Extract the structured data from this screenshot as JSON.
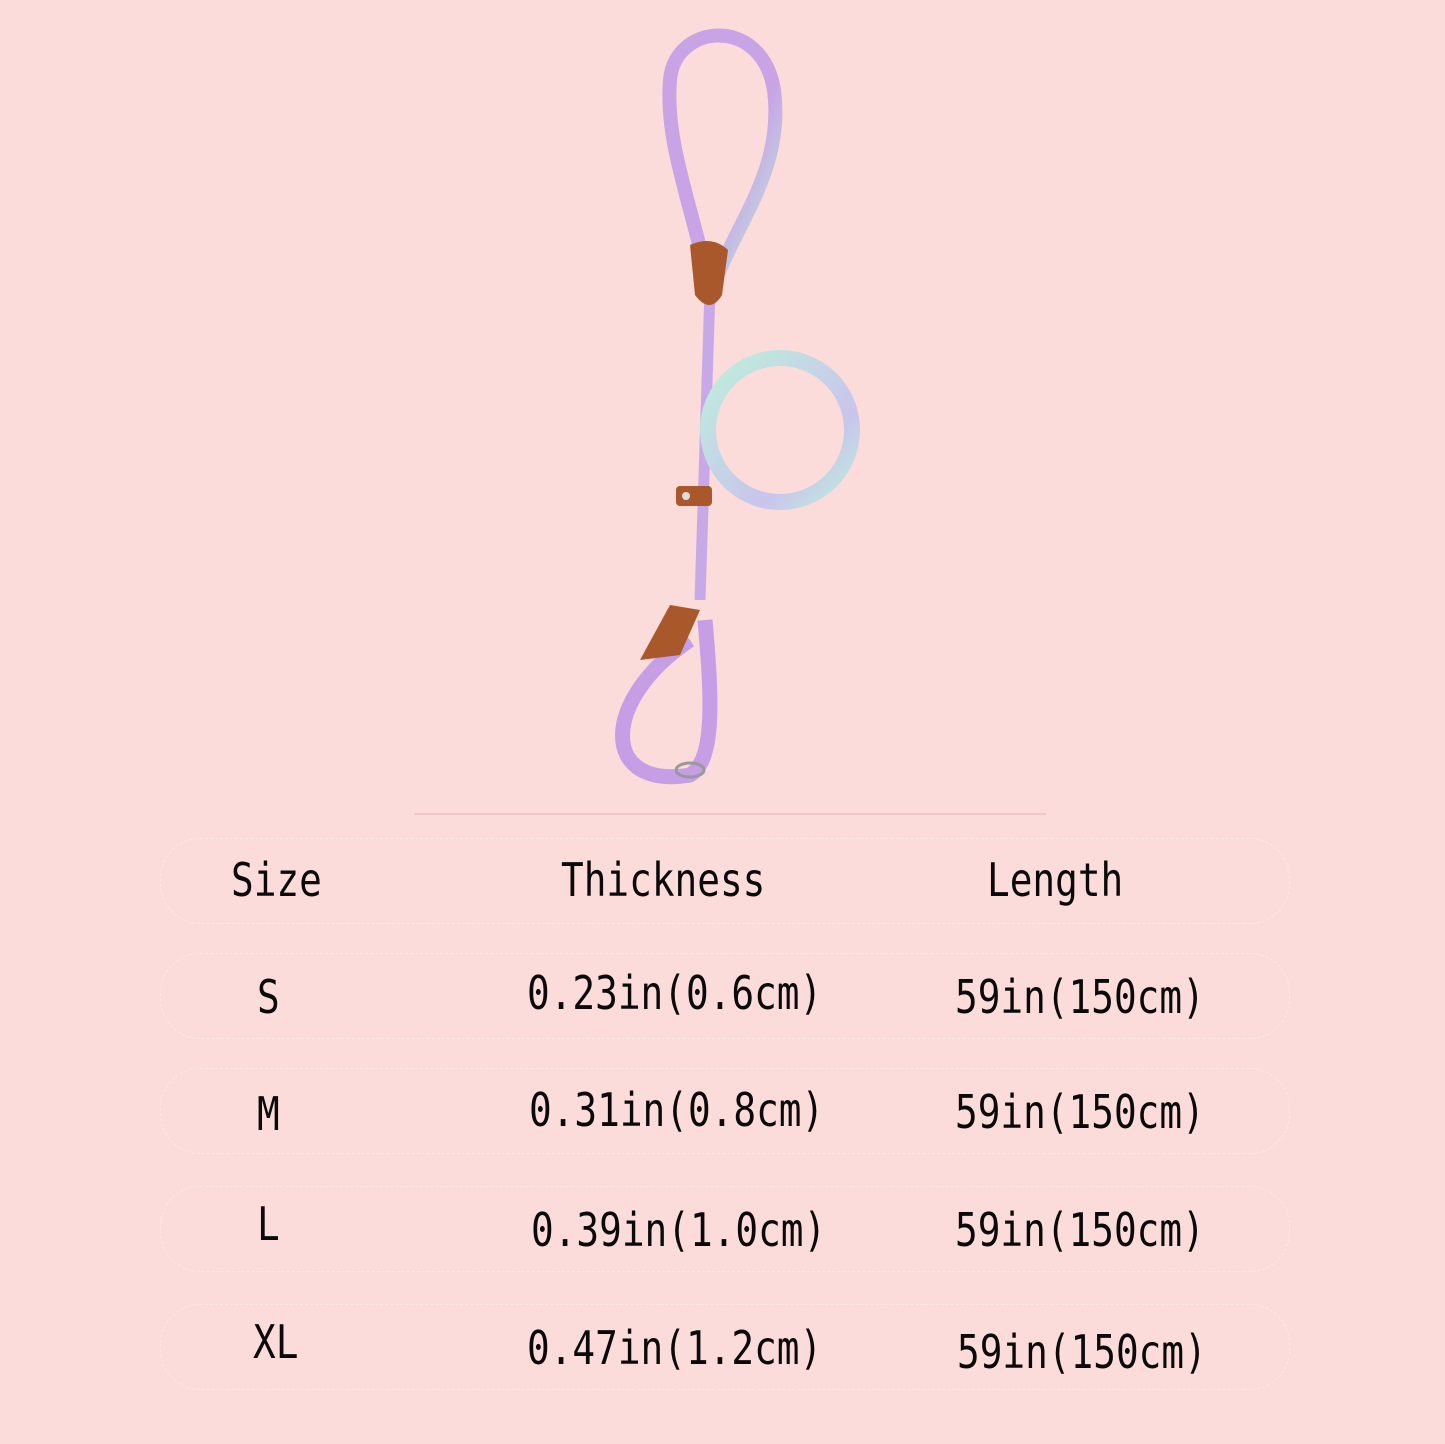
{
  "product": {
    "image": "rope-slip-leash-icon",
    "colors": {
      "background": "#fbdcda",
      "rope_purple": "#c9a6e6",
      "rope_mint": "#bfeedd",
      "leather": "#a9582b"
    }
  },
  "size_table": {
    "headers": [
      "Size",
      "Thickness",
      "Length"
    ],
    "rows": [
      {
        "size": "S",
        "thickness": "0.23in(0.6cm)",
        "length": "59in(150cm)"
      },
      {
        "size": "M",
        "thickness": "0.31in(0.8cm)",
        "length": "59in(150cm)"
      },
      {
        "size": "L",
        "thickness": "0.39in(1.0cm)",
        "length": "59in(150cm)"
      },
      {
        "size": "XL",
        "thickness": "0.47in(1.2cm)",
        "length": "59in(150cm)"
      }
    ]
  }
}
